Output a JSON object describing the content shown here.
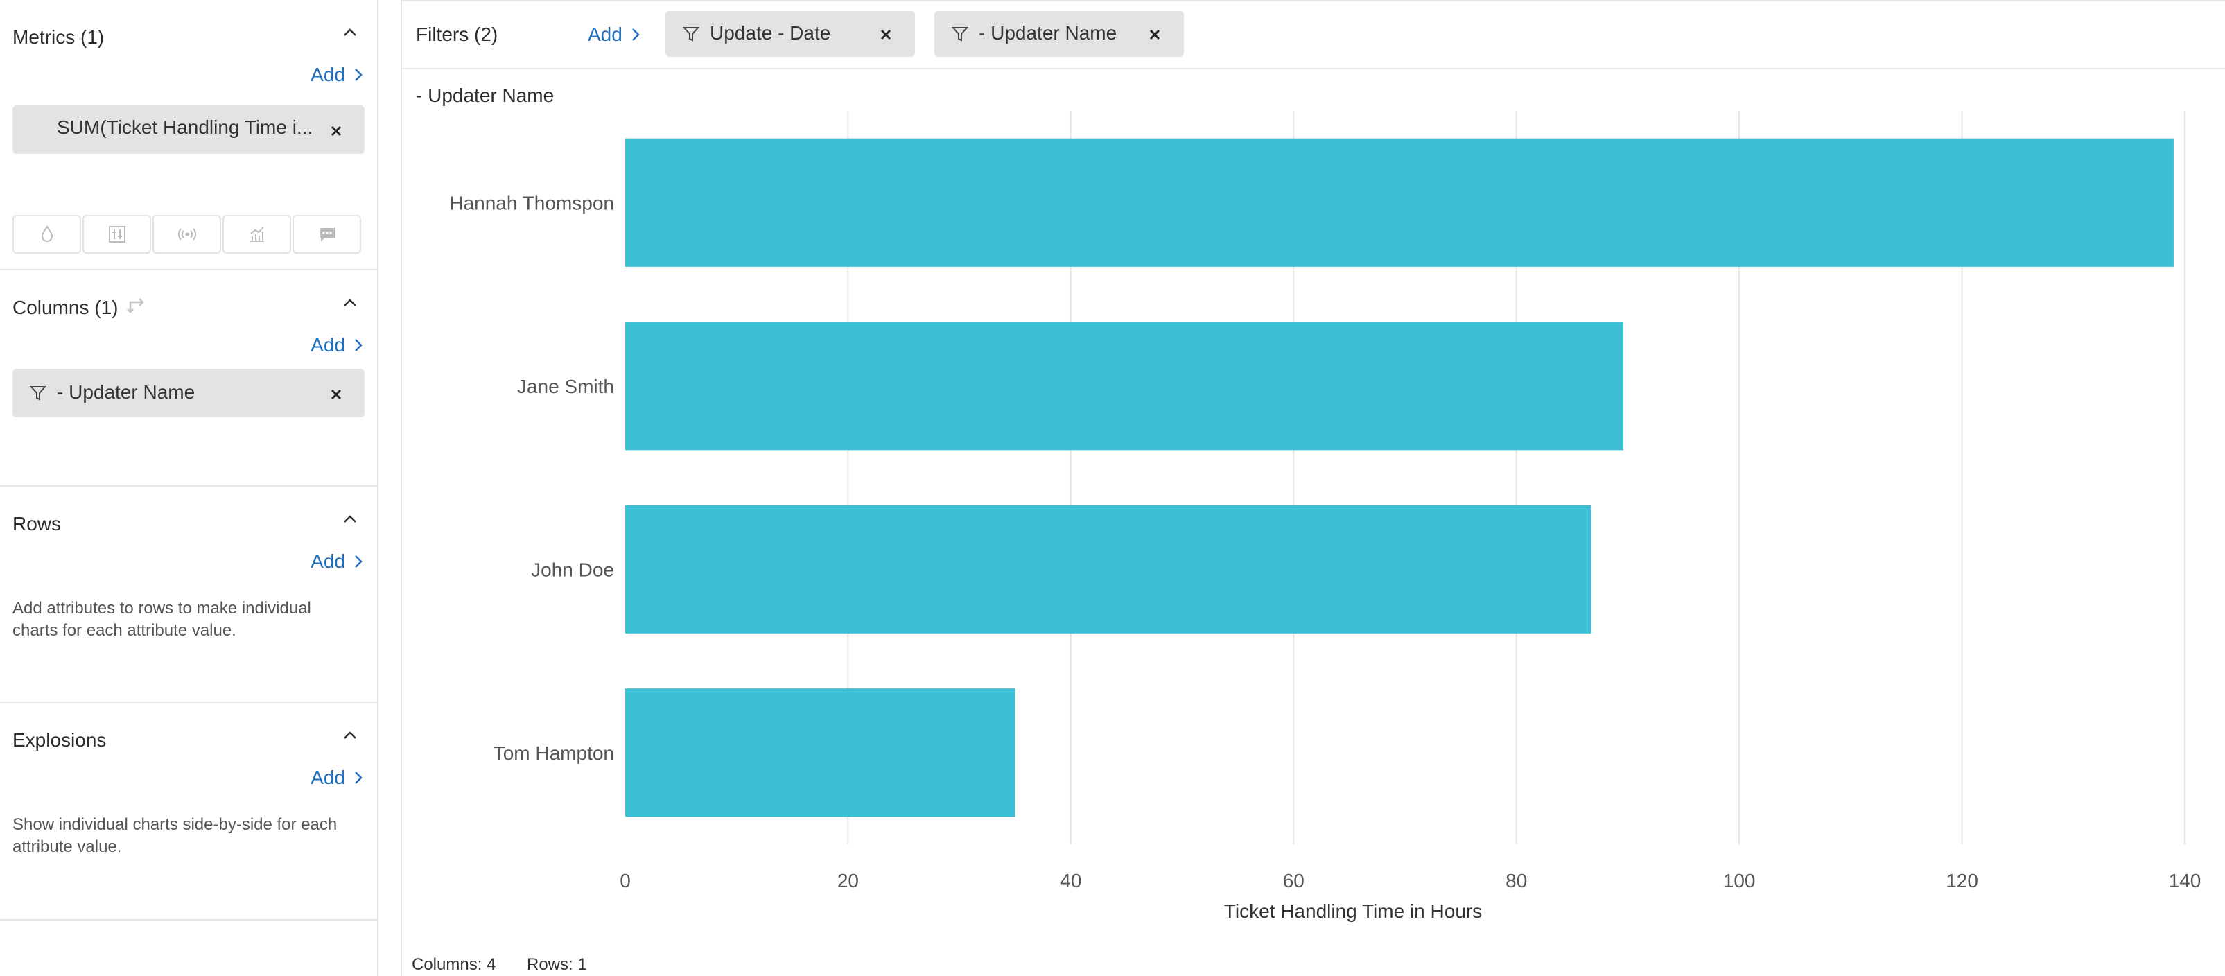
{
  "left_panel": {
    "metrics": {
      "title": "Metrics (1)",
      "add_label": "Add",
      "item": "SUM(Ticket Handling Time i..."
    },
    "viz_buttons": [
      "droplet-icon",
      "sliders-icon",
      "broadcast-icon",
      "trend-chart-icon",
      "comment-icon"
    ],
    "columns": {
      "title": "Columns (1)",
      "add_label": "Add",
      "item": "- Updater Name"
    },
    "rows": {
      "title": "Rows",
      "add_label": "Add",
      "hint": "Add attributes to rows to make individual charts for each attribute value."
    },
    "explosions": {
      "title": "Explosions",
      "add_label": "Add",
      "hint": "Show individual charts side-by-side for each attribute value."
    }
  },
  "filters": {
    "label": "Filters (2)",
    "add_label": "Add",
    "chips": [
      "Update - Date",
      "- Updater Name"
    ]
  },
  "chart_header": "- Updater Name",
  "chart_data": {
    "type": "bar",
    "orientation": "horizontal",
    "categories": [
      "Hannah Thomspon",
      "Jane Smith",
      "John Doe",
      "Tom Hampton"
    ],
    "values": [
      139,
      89.6,
      86.7,
      35
    ],
    "xlabel": "Ticket Handling Time in Hours",
    "xlim": [
      0,
      140
    ],
    "xticks": [
      0,
      20,
      40,
      60,
      80,
      100,
      120,
      140
    ],
    "grid": true,
    "bar_color": "#3bc0d5"
  },
  "status": {
    "columns": "Columns: 4",
    "rows": "Rows: 1"
  }
}
